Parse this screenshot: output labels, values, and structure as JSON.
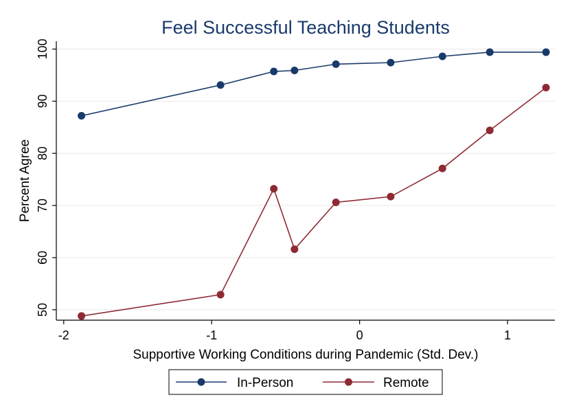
{
  "chart_data": {
    "type": "line",
    "title": "Feel Successful Teaching Students",
    "xlabel": "Supportive Working Conditions during Pandemic (Std. Dev.)",
    "ylabel": "Percent Agree",
    "xlim": [
      -2.05,
      1.32
    ],
    "ylim": [
      48.0,
      101.5
    ],
    "xticks": [
      -2,
      -1,
      0,
      1
    ],
    "xtick_labels": [
      "-2",
      "-1",
      "0",
      "1"
    ],
    "yticks": [
      50,
      60,
      70,
      80,
      90,
      100
    ],
    "ytick_labels": [
      "50",
      "60",
      "70",
      "80",
      "90",
      "100"
    ],
    "grid": true,
    "legend_position": "bottom",
    "series": [
      {
        "name": "In-Person",
        "color": "#1a3a6b",
        "x": [
          -1.88,
          -0.94,
          -0.58,
          -0.44,
          -0.16,
          0.21,
          0.56,
          0.88,
          1.26
        ],
        "y": [
          87.2,
          93.1,
          95.7,
          95.9,
          97.1,
          97.4,
          98.6,
          99.4,
          99.4
        ]
      },
      {
        "name": "Remote",
        "color": "#8e2a33",
        "x": [
          -1.88,
          -0.94,
          -0.58,
          -0.44,
          -0.16,
          0.21,
          0.56,
          0.88,
          1.26
        ],
        "y": [
          48.8,
          52.9,
          73.2,
          61.6,
          70.6,
          71.7,
          77.1,
          84.4,
          92.6
        ]
      }
    ]
  }
}
